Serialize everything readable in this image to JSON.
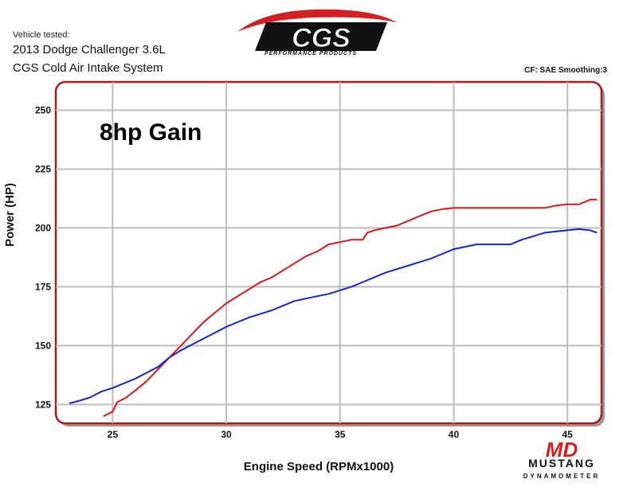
{
  "header": {
    "vehicle_tested_label": "Vehicle tested:",
    "vehicle": "2013 Dodge Challenger 3.6L",
    "product": "CGS Cold Air Intake System",
    "correction": "CF: SAE Smoothing:3",
    "logo_text": "CGS",
    "logo_tagline": "PERFORMANCE PRODUCTS"
  },
  "footer": {
    "brand": "MUSTANG",
    "brand_sub": "DYNAMOMETER",
    "brand_mark": "MD"
  },
  "colors": {
    "frame": "#b0181b",
    "grid": "#bdbdbd",
    "after_series": "#e0151c",
    "before_series": "#1424d0"
  },
  "chart_data": {
    "type": "line",
    "annotation": "8hp Gain",
    "xlabel": "Engine Speed (RPMx1000)",
    "ylabel": "Power (HP)",
    "xlim": [
      22.5,
      46.5
    ],
    "ylim": [
      117,
      262
    ],
    "xticks": [
      25,
      30,
      35,
      40,
      45
    ],
    "yticks": [
      125,
      150,
      175,
      200,
      225,
      250
    ],
    "grid": true,
    "series": [
      {
        "color": "#e0151c",
        "x": [
          24.6,
          25.0,
          25.2,
          25.6,
          26.0,
          26.5,
          27.0,
          27.5,
          28.0,
          28.5,
          29.0,
          29.5,
          30.0,
          30.5,
          31.0,
          31.5,
          32.0,
          32.5,
          33.0,
          33.5,
          34.0,
          34.5,
          35.0,
          35.5,
          36.0,
          36.2,
          36.5,
          37.0,
          37.5,
          38.0,
          38.5,
          39.0,
          39.5,
          40.0,
          41.0,
          42.0,
          43.0,
          44.0,
          44.5,
          45.0,
          45.5,
          46.0,
          46.3
        ],
        "y": [
          120,
          122,
          126,
          128,
          131,
          135,
          140,
          145,
          150,
          155,
          160,
          164,
          168,
          171,
          174,
          177,
          179,
          182,
          185,
          188,
          190,
          193,
          194,
          195,
          195,
          198,
          199,
          200,
          201,
          203,
          205,
          207,
          208,
          208.5,
          208.5,
          208.5,
          208.5,
          208.5,
          209.5,
          210,
          210,
          212,
          212
        ]
      },
      {
        "color": "#1424d0",
        "x": [
          23.1,
          23.5,
          24.0,
          24.5,
          25.0,
          25.5,
          26.0,
          26.5,
          27.0,
          27.5,
          28.0,
          28.5,
          29.0,
          29.5,
          30.0,
          30.5,
          31.0,
          31.5,
          32.0,
          32.5,
          33.0,
          33.5,
          34.0,
          34.5,
          35.0,
          35.5,
          36.0,
          36.5,
          37.0,
          37.5,
          38.0,
          38.5,
          39.0,
          39.5,
          40.0,
          40.5,
          41.0,
          41.5,
          42.0,
          42.5,
          43.0,
          43.5,
          44.0,
          44.5,
          45.0,
          45.5,
          46.0,
          46.3
        ],
        "y": [
          125.5,
          126.5,
          128,
          130.5,
          132,
          134,
          136,
          138.5,
          141,
          145,
          148,
          150.5,
          153,
          155.5,
          158,
          160,
          162,
          163.5,
          165,
          167,
          169,
          170,
          171,
          172,
          173.5,
          175,
          177,
          179,
          181,
          182.5,
          184,
          185.5,
          187,
          189,
          191,
          192,
          193,
          193,
          193,
          193,
          195,
          196.5,
          198,
          198.5,
          199,
          199.5,
          199,
          198
        ]
      }
    ]
  }
}
